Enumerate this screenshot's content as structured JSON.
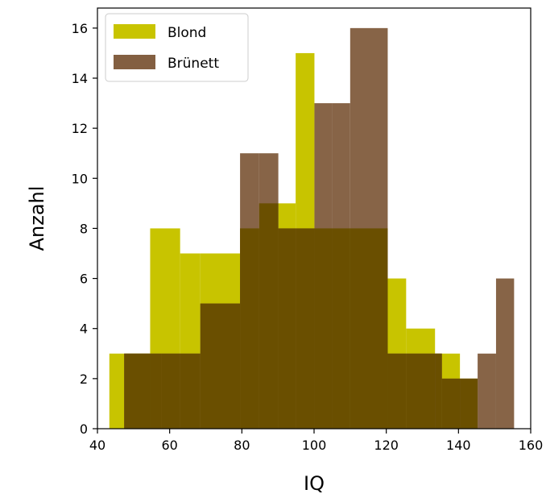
{
  "chart_data": {
    "type": "bar",
    "subtype": "overlaid-histogram",
    "title": "",
    "xlabel": "IQ",
    "ylabel": "Anzahl",
    "xlim": [
      40,
      160
    ],
    "ylim": [
      0,
      16.8
    ],
    "xticks": [
      40,
      60,
      80,
      100,
      120,
      140,
      160
    ],
    "yticks": [
      0,
      2,
      4,
      6,
      8,
      10,
      12,
      14,
      16
    ],
    "grid": false,
    "legend_position": "top-left",
    "series": [
      {
        "name": "Blond",
        "color": "#c8c400",
        "bin_edges": [
          43.3,
          47.4,
          54.6,
          62.9,
          68.5,
          79.5,
          84.8,
          90.1,
          94.9,
          100.1,
          110.0,
          120.4,
          125.5,
          133.5,
          140.4,
          145.3
        ],
        "counts": [
          3,
          3,
          8,
          7,
          7,
          8,
          9,
          9,
          15,
          8,
          8,
          6,
          4,
          3,
          2
        ]
      },
      {
        "name": "Brünett",
        "color": "#835f41",
        "bin_edges": [
          47.4,
          57.7,
          62.9,
          68.5,
          79.5,
          84.8,
          90.1,
          94.9,
          100.1,
          105.0,
          110.0,
          120.4,
          125.5,
          135.4,
          145.3,
          150.4,
          155.4
        ],
        "counts": [
          3,
          3,
          3,
          5,
          11,
          11,
          8,
          8,
          13,
          13,
          16,
          3,
          3,
          2,
          3,
          6
        ]
      }
    ]
  }
}
